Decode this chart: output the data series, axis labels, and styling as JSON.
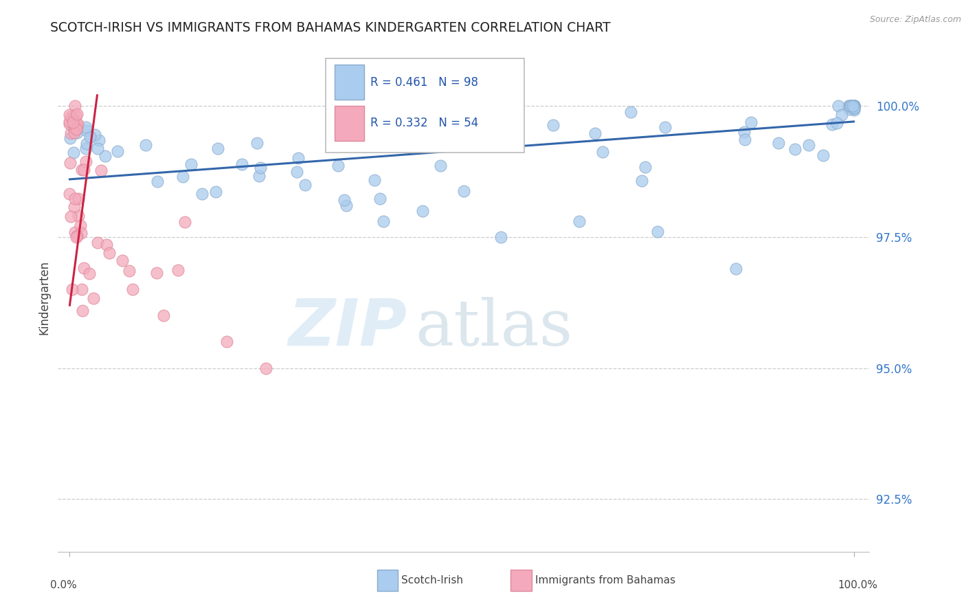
{
  "title": "SCOTCH-IRISH VS IMMIGRANTS FROM BAHAMAS KINDERGARTEN CORRELATION CHART",
  "source_text": "Source: ZipAtlas.com",
  "ylabel": "Kindergarten",
  "ylim": [
    91.5,
    101.2
  ],
  "xlim": [
    -1.5,
    102.0
  ],
  "yticks": [
    92.5,
    95.0,
    97.5,
    100.0
  ],
  "ytick_labels": [
    "92.5%",
    "95.0%",
    "97.5%",
    "100.0%"
  ],
  "blue_R": 0.461,
  "blue_N": 98,
  "pink_R": 0.332,
  "pink_N": 54,
  "legend_label_blue": "Scotch-Irish",
  "legend_label_pink": "Immigrants from Bahamas",
  "watermark_zip": "ZIP",
  "watermark_atlas": "atlas",
  "blue_color": "#aaccee",
  "blue_edge": "#88aacc",
  "pink_color": "#f4aabc",
  "pink_edge": "#dd8899",
  "blue_line_color": "#3366aa",
  "pink_line_color": "#cc2244",
  "blue_trend_x": [
    0,
    100
  ],
  "blue_trend_y": [
    98.6,
    99.7
  ],
  "pink_trend_x": [
    0,
    3.5
  ],
  "pink_trend_y": [
    96.2,
    100.2
  ]
}
